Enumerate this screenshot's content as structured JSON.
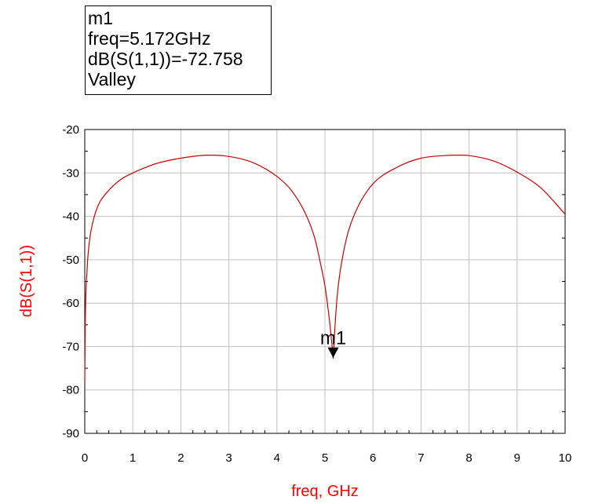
{
  "marker_box": {
    "name": "m1",
    "freq_text": "freq=5.172GHz",
    "value_text": "dB(S(1,1))=-72.758",
    "type_text": "Valley"
  },
  "chart_data": {
    "type": "line",
    "xlabel": "freq, GHz",
    "ylabel": "dB(S(1,1))",
    "xlim": [
      0,
      10
    ],
    "ylim": [
      -90,
      -20
    ],
    "x_ticks": [
      0,
      1,
      2,
      3,
      4,
      5,
      6,
      7,
      8,
      9,
      10
    ],
    "y_ticks": [
      -20,
      -30,
      -40,
      -50,
      -60,
      -70,
      -80,
      -90
    ],
    "grid": true,
    "series": [
      {
        "color": "#cc0000",
        "x": [
          0.0,
          0.01,
          0.05,
          0.1,
          0.2,
          0.3,
          0.5,
          0.75,
          1.0,
          1.25,
          1.5,
          2.0,
          2.6,
          3.0,
          3.5,
          4.0,
          4.3,
          4.6,
          4.8,
          4.9,
          5.0,
          5.05,
          5.1,
          5.15,
          5.172,
          5.2,
          5.25,
          5.3,
          5.4,
          5.5,
          5.7,
          6.0,
          6.5,
          7.0,
          7.5,
          7.8,
          8.0,
          8.5,
          9.0,
          9.5,
          10.0
        ],
        "y": [
          -78.0,
          -65.0,
          -52.0,
          -45.5,
          -40.0,
          -37.0,
          -34.0,
          -31.5,
          -30.0,
          -28.8,
          -27.8,
          -26.6,
          -25.9,
          -26.2,
          -27.6,
          -30.8,
          -34.0,
          -39.5,
          -45.5,
          -50.5,
          -56.0,
          -60.0,
          -64.5,
          -70.0,
          -72.758,
          -67.0,
          -59.0,
          -54.0,
          -47.5,
          -43.0,
          -37.5,
          -32.5,
          -28.7,
          -26.6,
          -26.0,
          -25.9,
          -26.0,
          -27.2,
          -29.8,
          -33.5,
          -39.5
        ]
      }
    ],
    "marker": {
      "label": "m1",
      "x": 5.172,
      "y": -72.758
    }
  },
  "colors": {
    "axis_label": "#ff0000",
    "trace": "#cc0000",
    "grid": "#c0c0c0"
  }
}
